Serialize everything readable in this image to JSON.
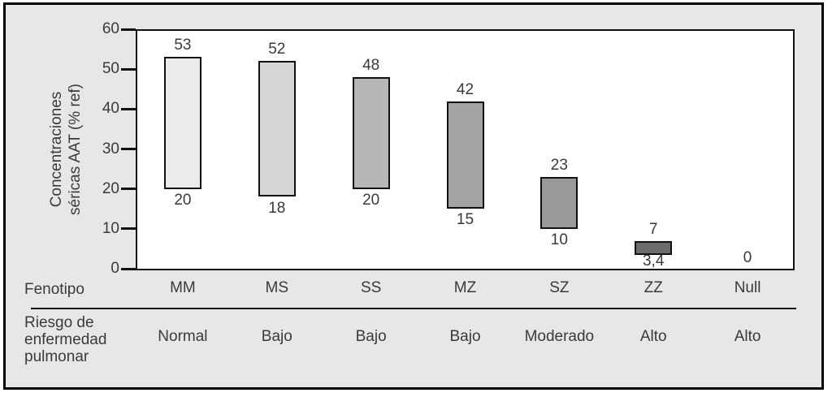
{
  "chart_data": {
    "type": "bar",
    "subtype": "floating-range-bars",
    "title": "",
    "ylabel": "Concentraciones séricas AAT (% ref)",
    "ylabel_lines": [
      "Concentraciones",
      "séricas AAT (% ref)"
    ],
    "ylim": [
      0,
      60
    ],
    "yticks": [
      0,
      10,
      20,
      30,
      40,
      50,
      60
    ],
    "grid": "off",
    "legend": "none",
    "categories": [
      "MM",
      "MS",
      "SS",
      "MZ",
      "SZ",
      "ZZ",
      "Null"
    ],
    "bars": [
      {
        "phenotype": "MM",
        "low": 20,
        "high": 53,
        "low_label": "20",
        "high_label": "53",
        "fill": "#ebebeb",
        "risk": "Normal"
      },
      {
        "phenotype": "MS",
        "low": 18,
        "high": 52,
        "low_label": "18",
        "high_label": "52",
        "fill": "#d5d5d5",
        "risk": "Bajo"
      },
      {
        "phenotype": "SS",
        "low": 20,
        "high": 48,
        "low_label": "20",
        "high_label": "48",
        "fill": "#b6b6b6",
        "risk": "Bajo"
      },
      {
        "phenotype": "MZ",
        "low": 15,
        "high": 42,
        "low_label": "15",
        "high_label": "42",
        "fill": "#a3a3a3",
        "risk": "Bajo"
      },
      {
        "phenotype": "SZ",
        "low": 10,
        "high": 23,
        "low_label": "10",
        "high_label": "23",
        "fill": "#999999",
        "risk": "Moderado"
      },
      {
        "phenotype": "ZZ",
        "low": 3.4,
        "high": 7,
        "low_label": "3,4",
        "high_label": "7",
        "fill": "#6d6d6d",
        "risk": "Alto"
      },
      {
        "phenotype": "Null",
        "low": 0,
        "high": 0,
        "low_label": "",
        "high_label": "0",
        "fill": null,
        "risk": "Alto"
      }
    ],
    "colors": {
      "figure_bg": "#e7e7e7",
      "plot_bg": "#ffffff",
      "axis": "#111111",
      "text": "#3a3a3a",
      "bar_border": "#111111"
    }
  },
  "table": {
    "phenotype_header": "Fenotipo",
    "risk_header_lines": [
      "Riesgo de",
      "enfermedad",
      "pulmonar"
    ]
  }
}
